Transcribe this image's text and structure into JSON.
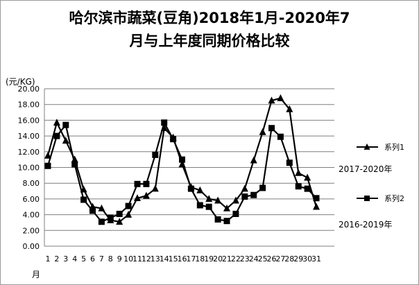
{
  "chart_data": {
    "type": "line",
    "title_line1": "哈尔滨市蔬菜(豆角)2018年1月-2020年7",
    "title_line2": "月与上年度同期价格比较",
    "ylabel": "(元/KG)",
    "xlabel": "月",
    "ylim": [
      0,
      20
    ],
    "y_ticks": [
      "0.00",
      "2.00",
      "4.00",
      "6.00",
      "8.00",
      "10.00",
      "12.00",
      "14.00",
      "16.00",
      "18.00",
      "20.00"
    ],
    "x_ticks": [
      "1",
      "2",
      "3",
      "4",
      "5",
      "6",
      "7",
      "8",
      "9",
      "10",
      "11",
      "12",
      "13",
      "14",
      "15",
      "16",
      "17",
      "18",
      "19",
      "20",
      "21",
      "22",
      "23",
      "24",
      "25",
      "26",
      "27",
      "28",
      "29",
      "30",
      "31"
    ],
    "grid": true,
    "legend_position": "right",
    "series": [
      {
        "name": "系列1",
        "annotation": "2017-2020年",
        "marker": "triangle",
        "values": [
          11.5,
          15.7,
          13.4,
          11.0,
          7.2,
          5.0,
          4.8,
          3.3,
          3.1,
          4.0,
          6.1,
          6.4,
          7.3,
          15.0,
          13.8,
          10.4,
          7.5,
          7.1,
          6.0,
          5.8,
          4.8,
          5.8,
          7.3,
          10.9,
          14.5,
          18.5,
          18.8,
          17.4,
          9.3,
          8.7,
          5.0
        ]
      },
      {
        "name": "系列2",
        "annotation": "2016-2019年",
        "marker": "square",
        "values": [
          10.2,
          14.0,
          15.4,
          10.4,
          5.9,
          4.5,
          3.1,
          3.6,
          4.1,
          5.1,
          7.9,
          7.9,
          11.6,
          15.7,
          13.6,
          11.0,
          7.3,
          5.2,
          5.0,
          3.4,
          3.2,
          4.1,
          6.3,
          6.5,
          7.4,
          15.0,
          13.9,
          10.6,
          7.6,
          7.3,
          6.1
        ]
      }
    ]
  }
}
